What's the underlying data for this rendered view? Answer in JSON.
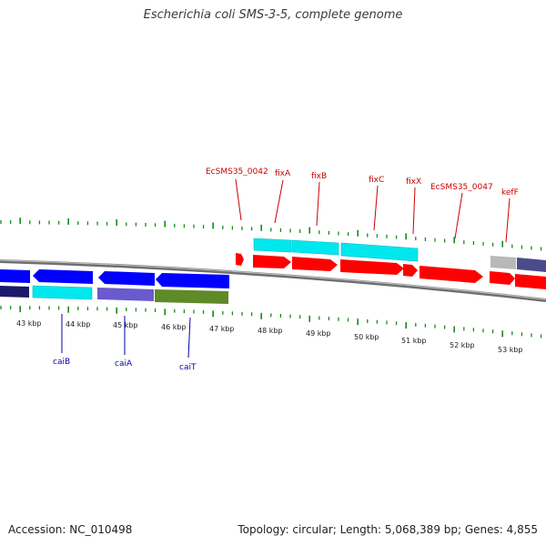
{
  "title": "Escherichia coli SMS-3-5, complete genome",
  "footer": {
    "accession": "Accession: NC_010498",
    "summary": "Topology: circular; Length: 5,068,389 bp; Genes: 4,855"
  },
  "colors": {
    "forward_genes": "#ff0000",
    "reverse_genes": "#0000ff",
    "forward_labels": "#cc0000",
    "reverse_labels": "#0000aa",
    "tick_marks": "#1a8a1a",
    "backbone": "#888888",
    "cds_cyan": "#00e8ee",
    "cds_purple": "#6a5acd",
    "cds_olive": "#5e8a28",
    "cds_navy": "#1a1a6a",
    "cds_gray": "#b8b8b8"
  },
  "ruler": {
    "unit": "kbp",
    "labels": [
      "43 kbp",
      "44 kbp",
      "45 kbp",
      "46 kbp",
      "47 kbp",
      "48 kbp",
      "49 kbp",
      "50 kbp",
      "51 kbp",
      "52 kbp",
      "53 kbp"
    ]
  },
  "forward_gene_labels": [
    {
      "name": "EcSMS35_0042"
    },
    {
      "name": "fixA"
    },
    {
      "name": "fixB"
    },
    {
      "name": "fixC"
    },
    {
      "name": "fixX"
    },
    {
      "name": "EcSMS35_0047"
    },
    {
      "name": "kefF"
    }
  ],
  "reverse_gene_labels": [
    {
      "name": "caiB"
    },
    {
      "name": "caiA"
    },
    {
      "name": "caiT"
    }
  ]
}
